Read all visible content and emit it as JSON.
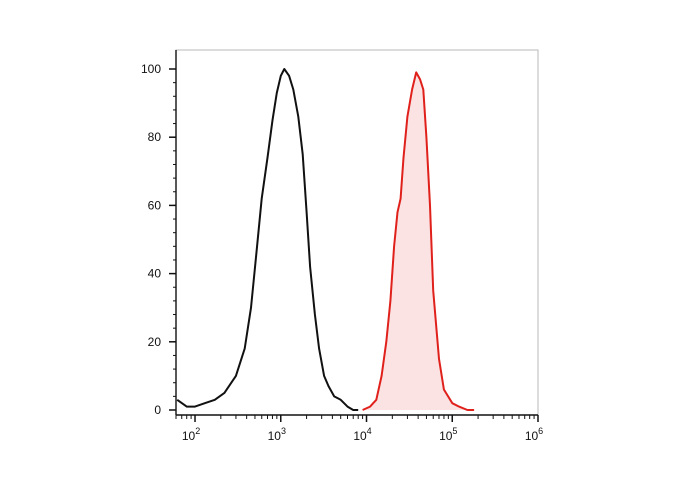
{
  "chart_data": {
    "type": "area",
    "title": "",
    "xlabel": "",
    "ylabel": "",
    "x_scale": "log",
    "xlim": [
      60,
      1000000
    ],
    "ylim": [
      0,
      100
    ],
    "grid": false,
    "legend": "none",
    "y_ticks": [
      0,
      20,
      40,
      60,
      80,
      100
    ],
    "y_tick_labels": [
      "0",
      "20",
      "40",
      "60",
      "80",
      "100"
    ],
    "x_ticks": [
      100,
      1000,
      10000,
      100000,
      1000000
    ],
    "x_tick_labels": [
      {
        "base": "10",
        "exp": "2"
      },
      {
        "base": "10",
        "exp": "3"
      },
      {
        "base": "10",
        "exp": "4"
      },
      {
        "base": "10",
        "exp": "5"
      },
      {
        "base": "10",
        "exp": "6"
      }
    ],
    "series": [
      {
        "color": "#111111",
        "fill": "none",
        "x": [
          62,
          80,
          100,
          130,
          170,
          220,
          300,
          380,
          450,
          520,
          600,
          700,
          800,
          900,
          1000,
          1100,
          1250,
          1400,
          1600,
          1800,
          2000,
          2200,
          2500,
          2800,
          3200,
          3600,
          4200,
          5000,
          6000,
          7000,
          8000
        ],
        "y": [
          3,
          1,
          1,
          2,
          3,
          5,
          10,
          18,
          30,
          46,
          62,
          74,
          85,
          93,
          98,
          100,
          98,
          94,
          86,
          75,
          58,
          42,
          28,
          18,
          10,
          7,
          4,
          3,
          1,
          0,
          0
        ]
      },
      {
        "color": "#e0201b",
        "fill": "#fbe3e3",
        "x": [
          9000,
          11000,
          13000,
          15000,
          17000,
          19000,
          21000,
          23000,
          25000,
          27000,
          30000,
          34000,
          38000,
          42000,
          46000,
          50000,
          55000,
          60000,
          70000,
          80000,
          100000,
          120000,
          150000,
          180000
        ],
        "y": [
          0,
          1,
          3,
          10,
          20,
          32,
          48,
          58,
          62,
          74,
          86,
          94,
          99,
          97,
          94,
          80,
          60,
          35,
          15,
          6,
          2,
          1,
          0,
          0
        ]
      }
    ]
  }
}
